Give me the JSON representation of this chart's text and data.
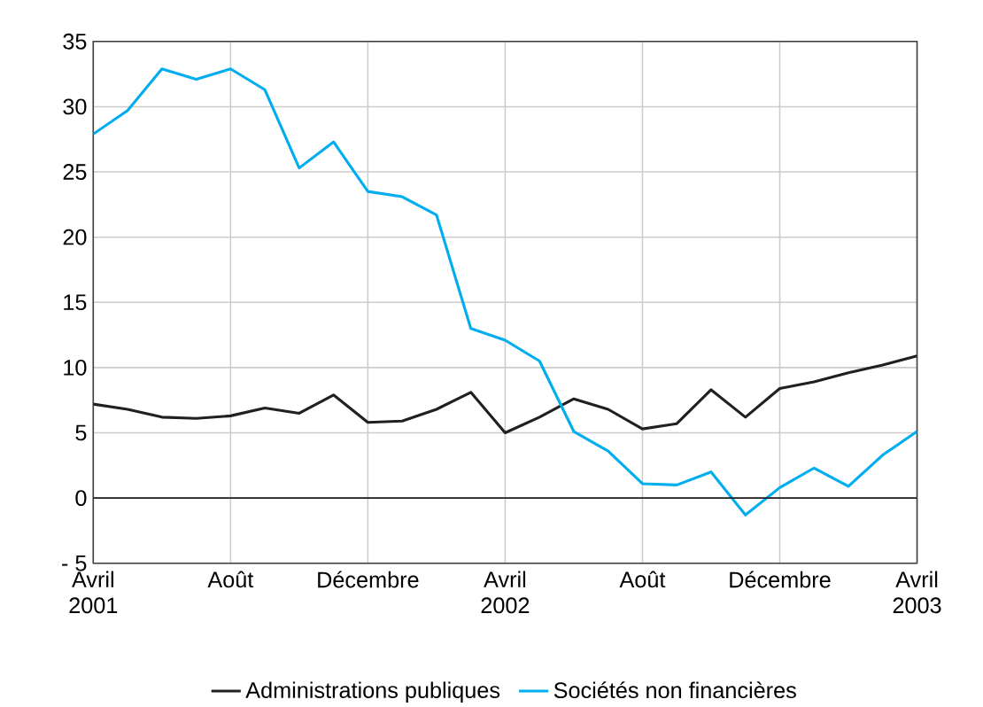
{
  "chart_data": {
    "type": "line",
    "categories": [
      "Avril 2001",
      null,
      null,
      null,
      "Août",
      null,
      null,
      null,
      "Décembre",
      null,
      null,
      null,
      "Avril 2002",
      null,
      null,
      null,
      "Août",
      null,
      null,
      null,
      "Décembre",
      null,
      null,
      null,
      "Avril 2003"
    ],
    "series": [
      {
        "name": "Administrations publiques",
        "color": "#231f20",
        "values": [
          7.2,
          6.8,
          6.2,
          6.1,
          6.3,
          6.9,
          6.5,
          7.9,
          5.8,
          5.9,
          6.8,
          8.1,
          5.0,
          6.2,
          7.6,
          6.8,
          5.3,
          5.7,
          8.3,
          6.2,
          8.4,
          8.9,
          9.6,
          10.2,
          10.9
        ]
      },
      {
        "name": "Sociétés non financières",
        "color": "#00aeef",
        "values": [
          27.9,
          29.7,
          32.9,
          32.1,
          32.9,
          31.3,
          25.3,
          27.3,
          23.5,
          23.1,
          21.7,
          13.0,
          12.1,
          10.5,
          5.1,
          3.6,
          1.1,
          1.0,
          2.0,
          -1.3,
          0.8,
          2.3,
          0.9,
          3.3,
          5.1
        ]
      }
    ],
    "ylim": [
      -5,
      35
    ],
    "yticks": [
      {
        "value": -5,
        "label": "- 5"
      },
      0,
      5,
      10,
      15,
      20,
      25,
      30,
      35
    ],
    "ref_lines": [
      {
        "axis": "y",
        "value": 0,
        "color": "#231f20"
      }
    ],
    "grid": true,
    "legend": "bottom",
    "marker": "none",
    "line_style": "solid"
  }
}
